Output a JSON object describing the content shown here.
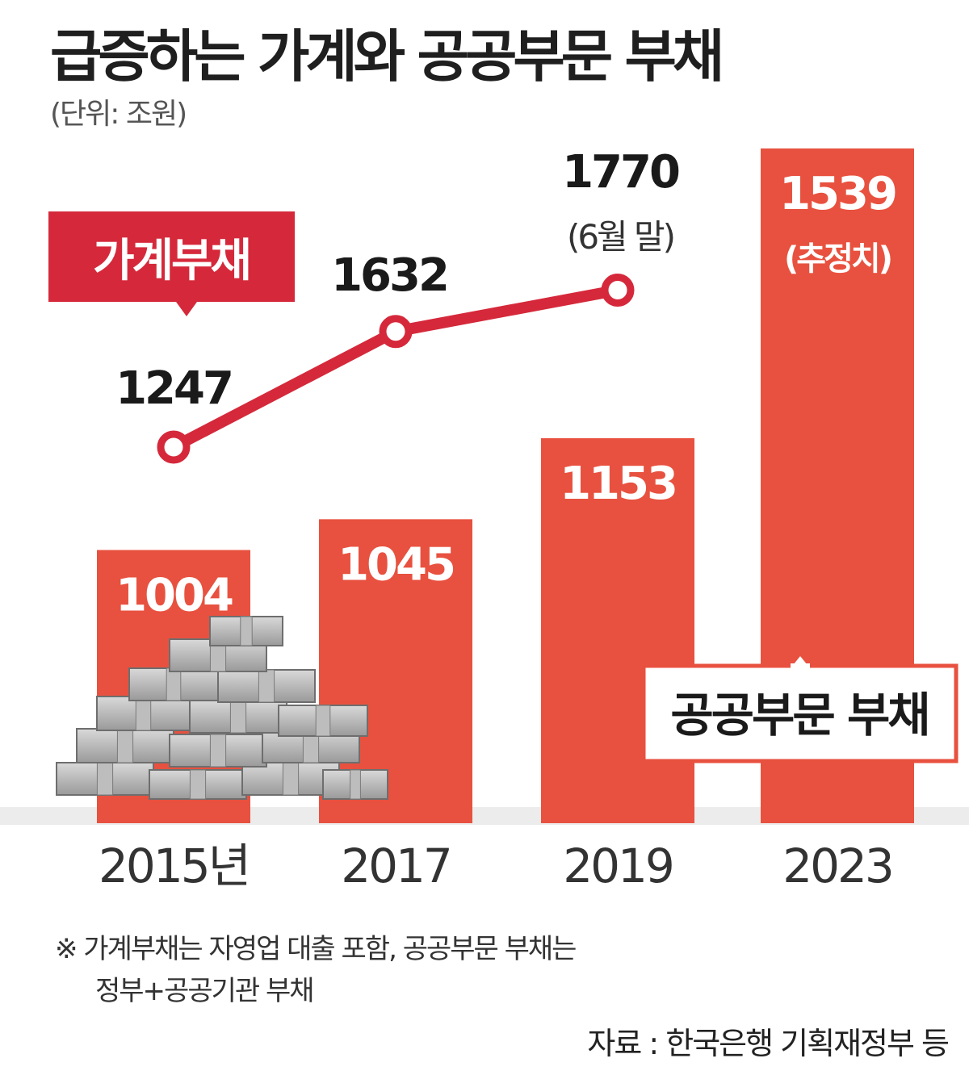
{
  "header": {
    "title": "급증하는 가계와 공공부문 부채",
    "unit": "(단위: 조원)"
  },
  "chart_data": {
    "type": "bar",
    "categories": [
      "2015년",
      "2017",
      "2019",
      "2023"
    ],
    "series": [
      {
        "name": "공공부문 부채",
        "type": "bar",
        "values": [
          1004,
          1045,
          1153,
          1539
        ],
        "labels": [
          "1004",
          "1045",
          "1153",
          "1539"
        ],
        "value_notes": [
          "",
          "",
          "",
          "(추정치)"
        ]
      },
      {
        "name": "가계부채",
        "type": "line",
        "values": [
          1247,
          1632,
          1770,
          null
        ],
        "labels": [
          "1247",
          "1632",
          "1770",
          ""
        ],
        "value_notes": [
          "",
          "",
          "(6월 말)",
          ""
        ]
      }
    ],
    "colors": {
      "bar": "#e8513f",
      "line": "#d5293b",
      "label_box": "#d5293b"
    }
  },
  "footer": {
    "note_line1": "※ 가계부채는 자영업 대출 포함, 공공부문 부채는",
    "note_line2": "정부+공공기관 부채",
    "source": "자료 : 한국은행 기획재정부 등"
  }
}
